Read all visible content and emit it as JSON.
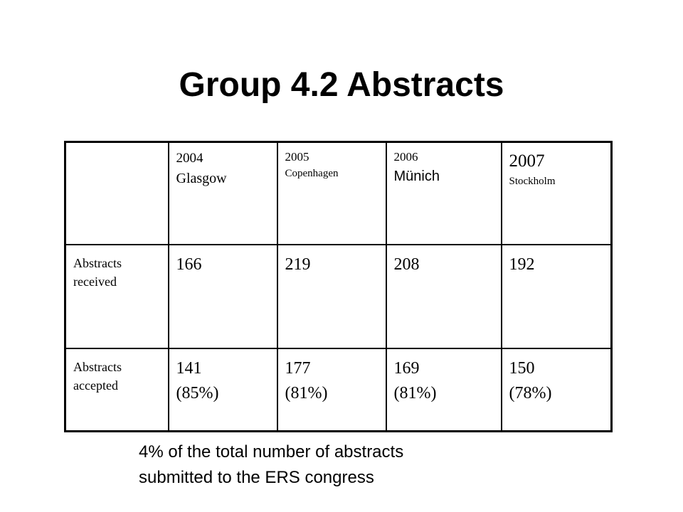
{
  "title": "Group 4.2 Abstracts",
  "table": {
    "header": [
      {
        "year": "2004",
        "city": "Glasgow"
      },
      {
        "year": "2005",
        "city": "Copenhagen"
      },
      {
        "year": "2006",
        "city": "Münich"
      },
      {
        "year": "2007",
        "city": "Stockholm"
      }
    ],
    "rows": [
      {
        "label": "Abstracts received",
        "cells": [
          [
            "166"
          ],
          [
            "219"
          ],
          [
            "208"
          ],
          [
            "192"
          ]
        ]
      },
      {
        "label": "Abstracts accepted",
        "cells": [
          [
            "141",
            "(85%)"
          ],
          [
            "177",
            "(81%)"
          ],
          [
            "169",
            "(81%)"
          ],
          [
            "150",
            "(78%)"
          ]
        ]
      }
    ]
  },
  "note": [
    "4% of the total number of abstracts",
    "submitted to the ERS congress"
  ]
}
